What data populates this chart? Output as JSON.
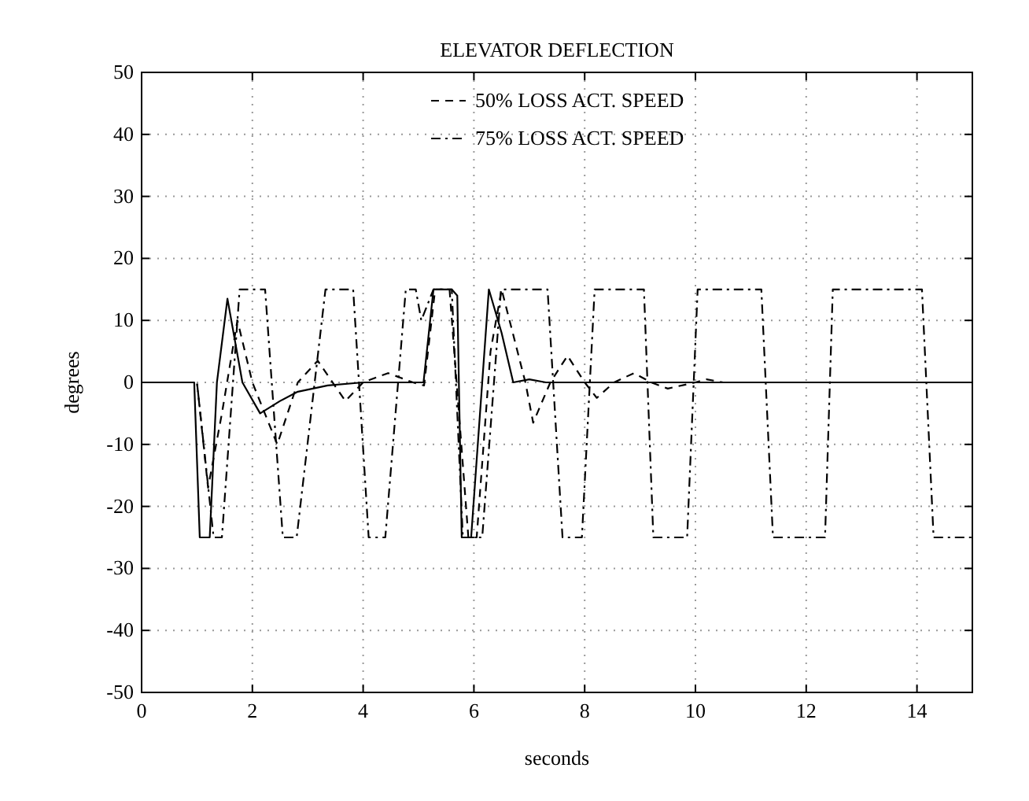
{
  "chart_data": {
    "type": "line",
    "title": "ELEVATOR DEFLECTION",
    "xlabel": "seconds",
    "ylabel": "degrees",
    "xlim": [
      0,
      15
    ],
    "xticks": [
      0,
      2,
      4,
      6,
      8,
      10,
      12,
      14
    ],
    "ylim": [
      -50,
      50
    ],
    "yticks": [
      -50,
      -40,
      -30,
      -20,
      -10,
      0,
      10,
      20,
      30,
      40,
      50
    ],
    "grid": true,
    "legend": "top",
    "marker": "none",
    "series": [
      {
        "color": "#000000",
        "line_style": "solid",
        "x": [
          0,
          0.95,
          1.05,
          1.23,
          1.36,
          1.55,
          1.82,
          2.14,
          2.5,
          2.82,
          3.36,
          4,
          5.09,
          5.27,
          5.6,
          5.7,
          5.78,
          5.95,
          6.27,
          6.5,
          6.71,
          7.0,
          7.3,
          15
        ],
        "values": [
          0,
          0,
          -25,
          -25,
          0,
          13.5,
          0,
          -5,
          -3,
          -1.5,
          -0.5,
          0,
          0,
          15,
          15,
          14,
          -25,
          -25,
          15,
          8,
          0,
          0.5,
          0,
          0
        ]
      },
      {
        "name": "50% LOSS ACT. SPEED",
        "color": "#000000",
        "line_style": "dashed",
        "x": [
          0,
          1.0,
          1.2,
          1.45,
          1.73,
          2.0,
          2.45,
          2.82,
          3.18,
          3.68,
          4,
          4.45,
          4.9,
          5.1,
          5.3,
          5.56,
          5.9,
          6.05,
          6.3,
          6.5,
          6.93,
          7.07,
          7.38,
          7.69,
          8.0,
          8.22,
          8.53,
          8.89,
          9.2,
          9.5,
          10,
          10.2,
          10.5,
          15
        ],
        "values": [
          0,
          0,
          -17,
          -5,
          10,
          0,
          -10,
          0,
          3.5,
          -3,
          0,
          1.5,
          0,
          -0.5,
          15,
          15,
          -25,
          -25,
          5,
          15,
          0,
          -6.5,
          0,
          4.3,
          0,
          -2.5,
          0,
          1.5,
          0,
          -1,
          0,
          0.5,
          0,
          0
        ]
      },
      {
        "name": "75% LOSS ACT. SPEED",
        "color": "#000000",
        "line_style": "dotted",
        "x": [
          0,
          1.0,
          1.3,
          1.45,
          1.77,
          2.23,
          2.55,
          2.8,
          3.32,
          3.82,
          4.1,
          4.4,
          4.77,
          4.95,
          5.05,
          5.27,
          5.6,
          5.8,
          6.04,
          6.15,
          6.49,
          7.33,
          7.6,
          7.95,
          8.18,
          9.07,
          9.24,
          9.85,
          10.04,
          11.19,
          11.4,
          12.34,
          12.48,
          14.09,
          14.3,
          15
        ],
        "values": [
          0,
          0,
          -25,
          -25,
          15,
          15,
          -25,
          -25,
          15,
          15,
          -25,
          -25,
          15,
          15,
          10,
          15,
          15,
          -25,
          -25,
          -25,
          15,
          15,
          -25,
          -25,
          15,
          15,
          -25,
          -25,
          15,
          15,
          -25,
          -25,
          15,
          15,
          -25,
          -25
        ]
      }
    ]
  }
}
